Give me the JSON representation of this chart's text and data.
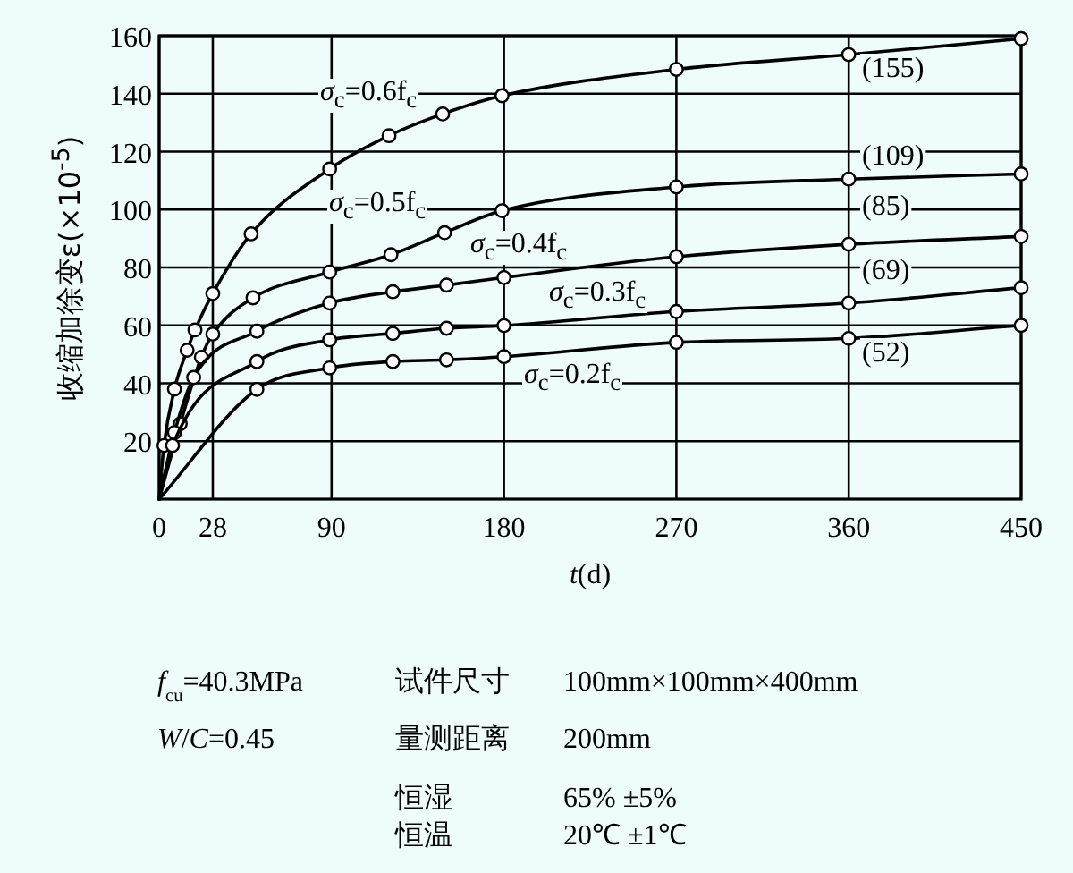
{
  "chart_data": {
    "type": "line",
    "xlabel": "*t*(d)",
    "ylabel": "收缩加徐变ε(×10$^{-5}$)",
    "xlim": [
      0,
      450
    ],
    "ylim": [
      0,
      160
    ],
    "xticks": [
      0,
      28,
      90,
      180,
      270,
      360,
      450
    ],
    "yticks": [
      20,
      40,
      60,
      80,
      100,
      120,
      140,
      160
    ],
    "grid": true,
    "marker": "circle",
    "line_style": "solid",
    "series": [
      {
        "name": "*σ*$_{c}$=0.6f$_{c}$",
        "color": "#000000",
        "x": [
          0,
          2.5,
          8,
          14.6,
          18.7,
          28,
          48,
          89,
          120,
          148,
          179,
          270,
          360,
          450
        ],
        "values": [
          0,
          18.5,
          38,
          51.4,
          58.4,
          71,
          91.6,
          114,
          125.5,
          133,
          139.3,
          148.4,
          153.5,
          159
        ]
      },
      {
        "name": "*σ*$_{c}$=0.5f$_{c}$",
        "color": "#000000",
        "x": [
          0,
          11,
          22,
          28,
          49,
          89,
          121,
          149,
          179,
          270,
          360,
          450
        ],
        "values": [
          0,
          26,
          49,
          57,
          69.5,
          78.4,
          84.4,
          92,
          99.6,
          107.8,
          110.5,
          112.3
        ]
      },
      {
        "name": "*σ*$_{c}$=0.4f$_{c}$",
        "color": "#000000",
        "x": [
          0,
          8,
          18,
          51,
          89,
          122,
          150,
          180,
          270,
          360,
          450
        ],
        "values": [
          0,
          23,
          42,
          58,
          67.7,
          71.6,
          73.9,
          76.5,
          83.7,
          88,
          90.7
        ]
      },
      {
        "name": "*σ*$_{c}$=0.3f$_{c}$",
        "color": "#000000",
        "x": [
          0,
          7,
          51,
          89,
          122,
          150,
          180,
          270,
          360,
          450
        ],
        "values": [
          0,
          18.5,
          47.5,
          55,
          57.2,
          59,
          59.9,
          64.8,
          67.7,
          73
        ]
      },
      {
        "name": "*σ*$_{c}$=0.2f$_{c}$",
        "color": "#000000",
        "x": [
          0,
          51,
          89,
          122,
          150,
          180,
          270,
          360,
          450
        ],
        "values": [
          0,
          37.9,
          45.3,
          47.5,
          48.1,
          49.2,
          54.1,
          55.5,
          60
        ]
      }
    ],
    "annotations": [
      "(155)",
      "(109)",
      "(85)",
      "(69)",
      "(52)",
      "*f*$_{cu}$=40.3MPa",
      "*W*/*C*=0.45",
      "试件尺寸",
      "100mm×100mm×400mm",
      "量测距离",
      "200mm",
      "恒湿",
      "65% ±5%",
      "恒温",
      "20℃ ±1℃"
    ]
  }
}
